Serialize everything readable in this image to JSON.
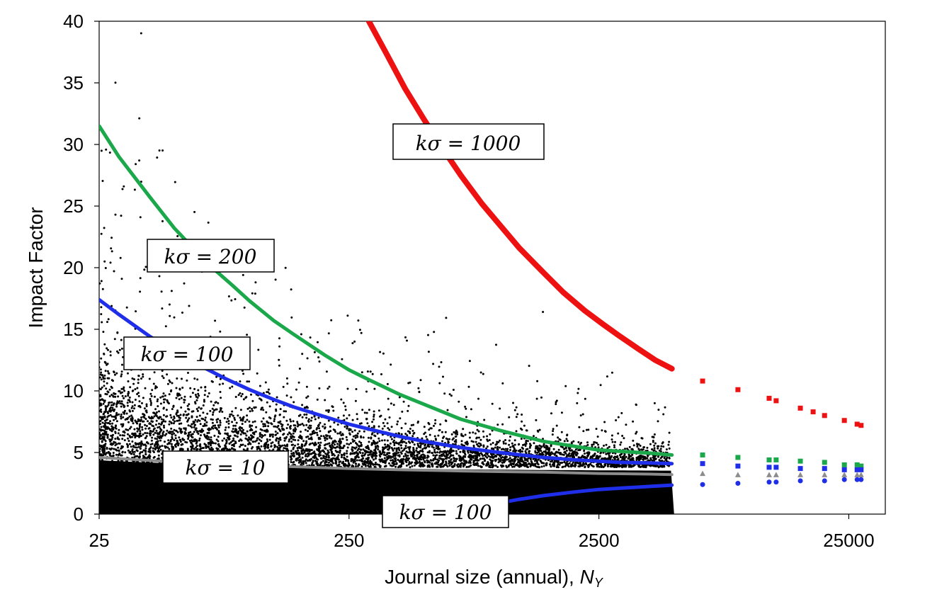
{
  "chart_data": {
    "type": "scatter",
    "title": "",
    "xlabel": "Journal size (annual), ",
    "xlabel_var": "N",
    "xlabel_sub": "Y",
    "ylabel": "Impact Factor",
    "xscale": "log",
    "xlim": [
      25,
      35000
    ],
    "ylim": [
      0,
      40
    ],
    "xticks": [
      25,
      250,
      2500,
      25000
    ],
    "xtick_labels": [
      "25",
      "250",
      "2500",
      "25000"
    ],
    "yticks": [
      0,
      5,
      10,
      15,
      20,
      25,
      30,
      35,
      40
    ],
    "ytick_labels": [
      "0",
      "5",
      "10",
      "15",
      "20",
      "25",
      "30",
      "35",
      "40"
    ],
    "grid": false,
    "colors": {
      "journals": "#000000",
      "k1000": "#ee1111",
      "k200": "#1aa84a",
      "k100": "#1f2ee8",
      "k10": "#8c8c8c"
    },
    "base_impact_factor": 3.2,
    "series": [
      {
        "key": "k1000",
        "x": [
          300,
          350,
          420,
          500,
          600,
          700,
          850,
          1000,
          1200,
          1500,
          1800,
          2200,
          2600,
          3000,
          3600,
          4200,
          4900
        ],
        "y": [
          40,
          37.5,
          34.5,
          32,
          29.5,
          27.5,
          25.2,
          23.5,
          21.6,
          19.6,
          18,
          16.5,
          15.4,
          14.5,
          13.4,
          12.5,
          11.8
        ]
      },
      {
        "key": "k200",
        "x": [
          25,
          30,
          40,
          50,
          60,
          70,
          85,
          100,
          125,
          150,
          200,
          250,
          300,
          400,
          500,
          700,
          1000,
          1500,
          2000,
          2500,
          3000,
          4000,
          4900
        ],
        "y": [
          31.5,
          29,
          25.7,
          23.2,
          21.5,
          20.1,
          18.6,
          17.3,
          15.7,
          14.6,
          12.9,
          11.7,
          10.9,
          9.7,
          8.9,
          7.7,
          6.8,
          5.9,
          5.5,
          5.2,
          5.1,
          4.95,
          4.8
        ]
      },
      {
        "key": "k100",
        "x": [
          25,
          30,
          40,
          50,
          60,
          80,
          100,
          125,
          150,
          200,
          250,
          300,
          400,
          500,
          700,
          1000,
          1500,
          2000,
          2500,
          3000,
          4000,
          4900
        ],
        "y": [
          17.4,
          16.2,
          14.4,
          13.2,
          12.3,
          11,
          10.1,
          9.3,
          8.7,
          7.9,
          7.3,
          6.9,
          6.3,
          5.9,
          5.4,
          5,
          4.6,
          4.4,
          4.3,
          4.2,
          4.15,
          4.1
        ]
      },
      {
        "key": "k100",
        "x": [
          900,
          1000,
          1200,
          1500,
          2000,
          2500,
          3000,
          4000,
          4900
        ],
        "y": [
          0.7,
          0.9,
          1.2,
          1.5,
          1.8,
          2,
          2.1,
          2.25,
          2.35
        ]
      },
      {
        "key": "k10",
        "x": [
          25,
          40,
          60,
          100,
          150,
          250,
          400,
          700,
          1000,
          1500,
          2500,
          4000,
          4900
        ],
        "y": [
          4.6,
          4.35,
          4.15,
          3.95,
          3.85,
          3.7,
          3.6,
          3.5,
          3.45,
          3.4,
          3.3,
          3.25,
          3.2
        ]
      }
    ],
    "discrete_points": [
      {
        "key": "k1000",
        "shape": "square",
        "x": [
          6500,
          9000,
          12000,
          12800,
          16000,
          18000,
          20000,
          24000,
          27000,
          28000
        ],
        "y": [
          10.8,
          10.1,
          9.4,
          9.2,
          8.6,
          8.3,
          8.0,
          7.6,
          7.3,
          7.2
        ]
      },
      {
        "key": "k200",
        "shape": "square",
        "x": [
          6500,
          9000,
          12000,
          12800,
          16000,
          20000,
          24000,
          27000,
          28000
        ],
        "y": [
          4.8,
          4.6,
          4.4,
          4.4,
          4.3,
          4.2,
          4.0,
          4.0,
          3.9
        ]
      },
      {
        "key": "k100",
        "shape": "square",
        "x": [
          6500,
          9000,
          12000,
          12800,
          16000,
          20000,
          24000,
          27000,
          28000
        ],
        "y": [
          4.1,
          3.9,
          3.8,
          3.8,
          3.7,
          3.7,
          3.6,
          3.6,
          3.6
        ]
      },
      {
        "key": "k10",
        "shape": "triangle",
        "x": [
          6500,
          9000,
          12000,
          12800,
          16000,
          20000,
          24000,
          27000,
          28000
        ],
        "y": [
          3.3,
          3.2,
          3.2,
          3.2,
          3.2,
          3.2,
          3.2,
          3.2,
          3.2
        ]
      },
      {
        "key": "k100",
        "shape": "circle",
        "x": [
          6500,
          9000,
          12000,
          12800,
          16000,
          20000,
          24000,
          27000,
          28000
        ],
        "y": [
          2.4,
          2.5,
          2.6,
          2.6,
          2.7,
          2.7,
          2.8,
          2.8,
          2.8
        ]
      }
    ],
    "annotations": [
      {
        "key": "k1000",
        "text": "kσ = 1000"
      },
      {
        "key": "k200",
        "text": "kσ = 200"
      },
      {
        "key": "k100",
        "text": "kσ = 100"
      },
      {
        "key": "k10",
        "text": "kσ = 10"
      },
      {
        "key": "k100-lower",
        "text": "kσ = 100"
      }
    ]
  }
}
